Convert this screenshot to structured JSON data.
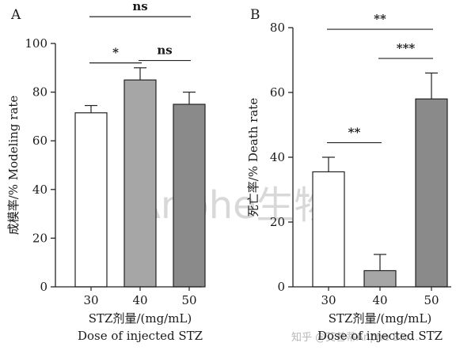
{
  "watermark": {
    "main": "Anphe生物",
    "footer": "知乎 @艾普蒂Anphe Bio..."
  },
  "chart_data": [
    {
      "panel": "A",
      "type": "bar",
      "categories": [
        "30",
        "40",
        "50"
      ],
      "values": [
        71.5,
        85,
        75
      ],
      "errors": [
        3,
        5,
        5
      ],
      "colors": [
        "#ffffff",
        "#a6a6a6",
        "#8a8a8a"
      ],
      "ylabel": "成模率/% Modeling rate",
      "xlabel_line1": "STZ剂量/(mg/mL)",
      "xlabel_line2": "Dose of injected STZ",
      "ylim": [
        0,
        100
      ],
      "yticks": [
        "0",
        "20",
        "40",
        "60",
        "80",
        "100"
      ],
      "significance": [
        {
          "from": 0,
          "to": 2,
          "label": "ns",
          "level": 111
        },
        {
          "from": 0,
          "to": 1,
          "label": "*",
          "level": 92
        },
        {
          "from": 1,
          "to": 2,
          "label": "ns",
          "level": 93
        }
      ]
    },
    {
      "panel": "B",
      "type": "bar",
      "categories": [
        "30",
        "40",
        "50"
      ],
      "values": [
        35.5,
        5,
        58
      ],
      "errors": [
        4.5,
        5,
        8
      ],
      "colors": [
        "#ffffff",
        "#a6a6a6",
        "#8a8a8a"
      ],
      "ylabel": "死亡率/% Death rate",
      "xlabel_line1": "STZ剂量/(mg/mL)",
      "xlabel_line2": "Dose of injected STZ",
      "ylim": [
        0,
        80
      ],
      "yticks": [
        "0",
        "20",
        "40",
        "60",
        "80"
      ],
      "significance": [
        {
          "from": 0,
          "to": 2,
          "label": "**",
          "level": 79.5
        },
        {
          "from": 1,
          "to": 2,
          "label": "***",
          "level": 70.5
        },
        {
          "from": 0,
          "to": 1,
          "label": "**",
          "level": 44.5
        }
      ]
    }
  ]
}
